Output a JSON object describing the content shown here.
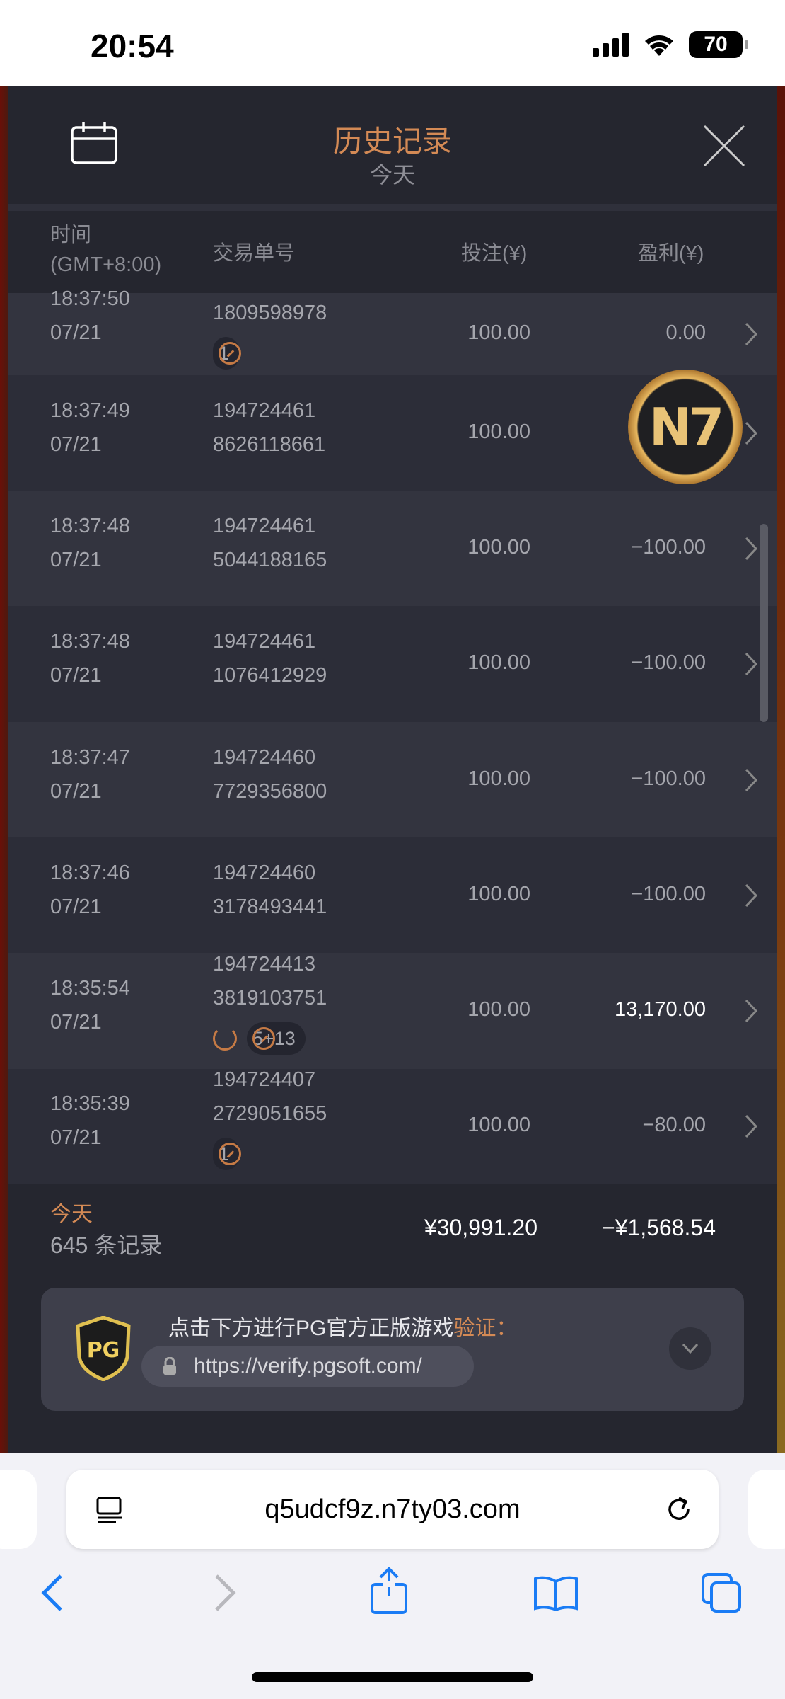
{
  "status_bar": {
    "time": "20:54",
    "battery": "70"
  },
  "header": {
    "title": "历史记录",
    "subtitle": "今天"
  },
  "columns": {
    "time": "时间",
    "timezone": "(GMT+8:00)",
    "txn": "交易单号",
    "bet": "投注(¥)",
    "profit": "盈利(¥)"
  },
  "rows": [
    {
      "time": "18:37:50",
      "date": "07/21",
      "id1": "",
      "id2": "1809598978",
      "bet": "100.00",
      "profit": "0.00",
      "badge": "1",
      "spin": false
    },
    {
      "time": "18:37:49",
      "date": "07/21",
      "id1": "194724461",
      "id2": "8626118661",
      "bet": "100.00",
      "profit": "",
      "badge": "",
      "spin": false
    },
    {
      "time": "18:37:48",
      "date": "07/21",
      "id1": "194724461",
      "id2": "5044188165",
      "bet": "100.00",
      "profit": "−100.00",
      "badge": "",
      "spin": false
    },
    {
      "time": "18:37:48",
      "date": "07/21",
      "id1": "194724461",
      "id2": "1076412929",
      "bet": "100.00",
      "profit": "−100.00",
      "badge": "",
      "spin": false
    },
    {
      "time": "18:37:47",
      "date": "07/21",
      "id1": "194724460",
      "id2": "7729356800",
      "bet": "100.00",
      "profit": "−100.00",
      "badge": "",
      "spin": false
    },
    {
      "time": "18:37:46",
      "date": "07/21",
      "id1": "194724460",
      "id2": "3178493441",
      "bet": "100.00",
      "profit": "−100.00",
      "badge": "",
      "spin": false
    },
    {
      "time": "18:35:54",
      "date": "07/21",
      "id1": "194724413",
      "id2": "3819103751",
      "bet": "100.00",
      "profit": "13,170.00",
      "badge": "5+13",
      "spin": true
    },
    {
      "time": "18:35:39",
      "date": "07/21",
      "id1": "194724407",
      "id2": "2729051655",
      "bet": "100.00",
      "profit": "−80.00",
      "badge": "1",
      "spin": false
    }
  ],
  "summary": {
    "label": "今天",
    "count": "645 条记录",
    "bet_total": "¥30,991.20",
    "profit_total": "−¥1,568.54"
  },
  "verify": {
    "text": "点击下方进行PG官方正版游戏",
    "highlight": "验证：",
    "url": "https://verify.pgsoft.com/",
    "logo": "PG"
  },
  "overlay_logo": "N7",
  "browser": {
    "url": "q5udcf9z.n7ty03.com"
  },
  "colors": {
    "accent": "#d48a55",
    "panel": "#25262f",
    "positive": "#ffffff"
  }
}
